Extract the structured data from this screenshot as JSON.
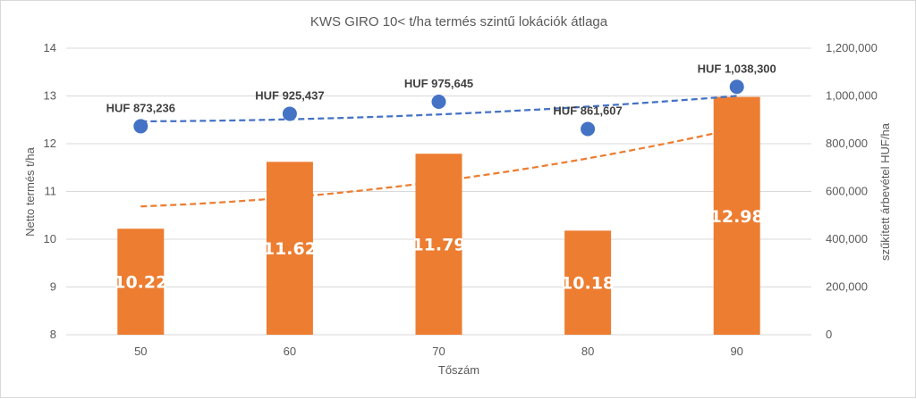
{
  "chart_data": {
    "type": "bar",
    "title": "KWS GIRO 10< t/ha termés szintű lokációk átlaga",
    "xlabel": "Tőszám",
    "ylabel": "Netto termés t/ha",
    "y2label": "szűkített árbevétel HUF/ha",
    "categories": [
      "50",
      "60",
      "70",
      "80",
      "90"
    ],
    "ylim": [
      8,
      14
    ],
    "yticks": [
      "8",
      "9",
      "10",
      "11",
      "12",
      "13",
      "14"
    ],
    "y2lim": [
      0,
      1200000
    ],
    "y2ticks": [
      "0",
      "200,000",
      "400,000",
      "600,000",
      "800,000",
      "1,000,000",
      "1,200,000"
    ],
    "grid": true,
    "series": [
      {
        "kind": "bar",
        "axis": "left",
        "color": "#ed7d31",
        "values": [
          10.22,
          11.62,
          11.79,
          10.18,
          12.98
        ],
        "labels": [
          "10.22",
          "11.62",
          "11.79",
          "10.18",
          "12.98"
        ]
      },
      {
        "kind": "scatter",
        "axis": "right",
        "color": "#4472c4",
        "values": [
          873236,
          925437,
          975645,
          861607,
          1038300
        ],
        "labels": [
          "HUF 873,236",
          "HUF 925,437",
          "HUF 975,645",
          "HUF 861,607",
          "HUF 1,038,300"
        ]
      }
    ],
    "trendlines": [
      {
        "of": "bar",
        "color": "#ed7d31",
        "style": "dashed"
      },
      {
        "of": "scatter",
        "color": "#4472c4",
        "style": "dashed"
      }
    ]
  }
}
